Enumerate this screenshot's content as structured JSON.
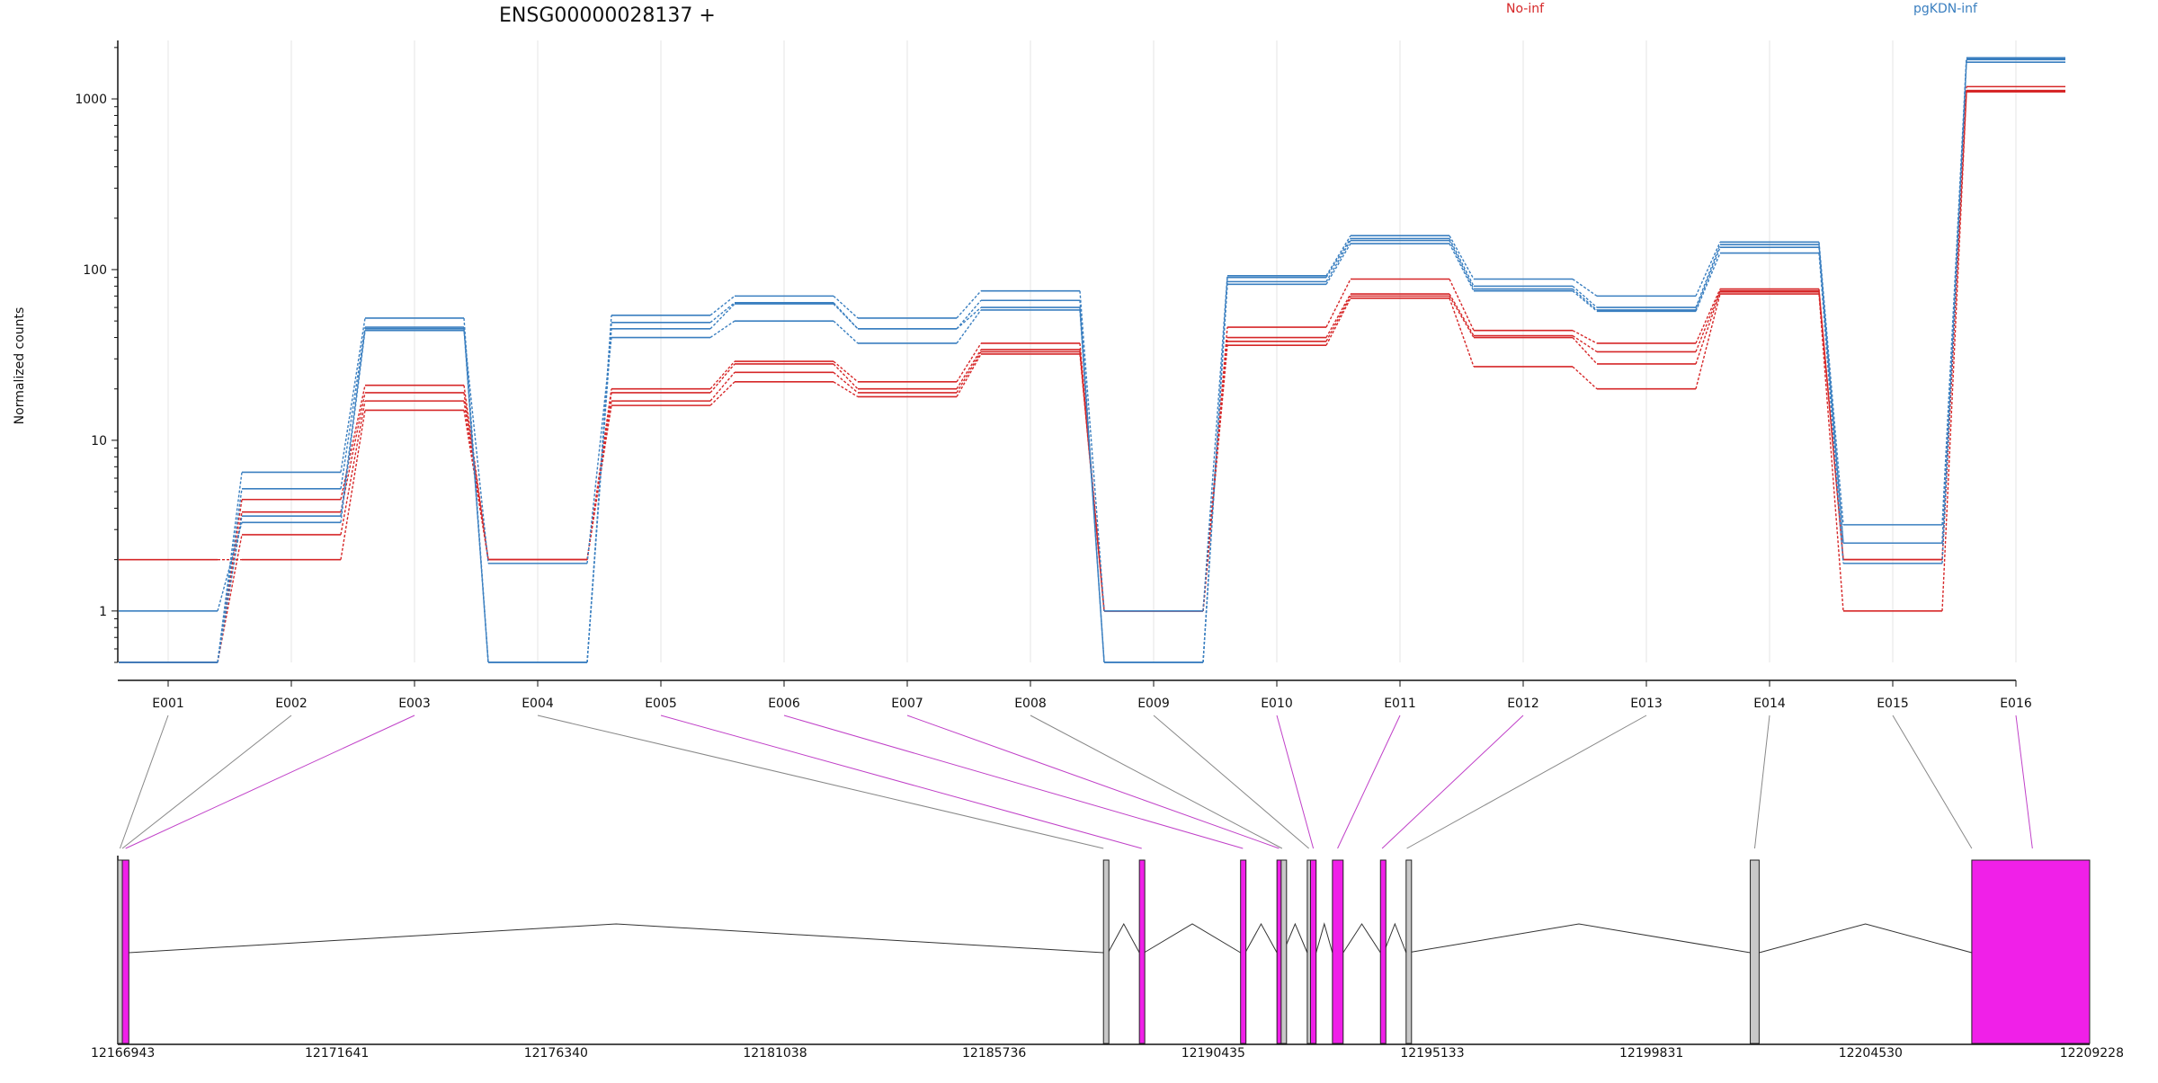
{
  "title": "ENSG00000028137 +",
  "legend": [
    {
      "label": "No-inf",
      "color": "#d62728"
    },
    {
      "label": "pgKDN-inf",
      "color": "#3a7fc0"
    }
  ],
  "colors": {
    "no_inf": "#d62728",
    "pgkdn_inf": "#3a7fc0",
    "highlight_exon": "#f020e8",
    "plain_exon": "#c8c8c8",
    "connector_highlight": "#c040c8",
    "connector_plain": "#888888"
  },
  "chart_data": [
    {
      "type": "line",
      "title": "ENSG00000028137 +",
      "ylabel": "Normalized counts",
      "y_scale": "log",
      "ylim": [
        0.5,
        2200
      ],
      "y_ticks": [
        {
          "value": 1,
          "label": "1"
        },
        {
          "value": 10,
          "label": "10"
        },
        {
          "value": 100,
          "label": "100"
        },
        {
          "value": 1000,
          "label": "1000"
        }
      ],
      "categories": [
        "E001",
        "E002",
        "E003",
        "E004",
        "E005",
        "E006",
        "E007",
        "E008",
        "E009",
        "E010",
        "E011",
        "E012",
        "E013",
        "E014",
        "E015",
        "E016"
      ],
      "grid": "vertical",
      "series": [
        {
          "group": "No-inf",
          "values": [
            2.0,
            2.0,
            15,
            2.0,
            16,
            22,
            18,
            32,
            1.0,
            36,
            68,
            27,
            20,
            72,
            1.0,
            1100
          ]
        },
        {
          "group": "No-inf",
          "values": [
            0.5,
            2.8,
            17,
            2.0,
            17,
            25,
            19,
            33,
            1.0,
            38,
            70,
            40,
            28,
            74,
            2.0,
            1110
          ]
        },
        {
          "group": "No-inf",
          "values": [
            0.5,
            3.8,
            19,
            2.0,
            19,
            28,
            20,
            34,
            1.0,
            40,
            72,
            41,
            33,
            75,
            2.0,
            1120
          ]
        },
        {
          "group": "No-inf",
          "values": [
            0.5,
            4.5,
            21,
            2.0,
            20,
            29,
            22,
            37,
            1.0,
            46,
            88,
            44,
            37,
            77,
            2.0,
            1180
          ]
        },
        {
          "group": "pgKDN-inf",
          "values": [
            1.0,
            3.3,
            44,
            1.9,
            40,
            50,
            37,
            58,
            0.5,
            82,
            142,
            75,
            57,
            125,
            1.9,
            1640
          ]
        },
        {
          "group": "pgKDN-inf",
          "values": [
            0.5,
            3.6,
            45,
            0.5,
            45,
            63,
            45,
            60,
            0.5,
            85,
            148,
            77,
            58,
            135,
            2.5,
            1700
          ]
        },
        {
          "group": "pgKDN-inf",
          "values": [
            0.5,
            5.2,
            46,
            0.5,
            49,
            64,
            45,
            66,
            0.5,
            90,
            152,
            80,
            60,
            140,
            2.5,
            1720
          ]
        },
        {
          "group": "pgKDN-inf",
          "values": [
            0.5,
            6.5,
            52,
            0.5,
            54,
            70,
            52,
            75,
            1.0,
            92,
            158,
            88,
            70,
            145,
            3.2,
            1740
          ]
        }
      ]
    },
    {
      "type": "gene_model",
      "xlim": [
        12166943,
        12209228
      ],
      "x_ticks": [
        {
          "value": 12166943,
          "label": "12166943"
        },
        {
          "value": 12171641,
          "label": "12171641"
        },
        {
          "value": 12176340,
          "label": "12176340"
        },
        {
          "value": 12181038,
          "label": "12181038"
        },
        {
          "value": 12185736,
          "label": "12185736"
        },
        {
          "value": 12190435,
          "label": "12190435"
        },
        {
          "value": 12195133,
          "label": "12195133"
        },
        {
          "value": 12199831,
          "label": "12199831"
        },
        {
          "value": 12204530,
          "label": "12204530"
        },
        {
          "value": 12209228,
          "label": "12209228"
        }
      ],
      "exons": [
        {
          "start": 12166943,
          "end": 12167040,
          "bin": "E001",
          "highlight": false
        },
        {
          "start": 12167040,
          "end": 12167180,
          "bin": "E002",
          "highlight": true
        },
        {
          "start": 12188080,
          "end": 12188180,
          "bin": "E004",
          "highlight": false
        },
        {
          "start": 12188850,
          "end": 12188950,
          "bin": "E005",
          "highlight": true
        },
        {
          "start": 12191020,
          "end": 12191120,
          "bin": "E006",
          "highlight": true
        },
        {
          "start": 12191800,
          "end": 12191890,
          "bin": "E007",
          "highlight": true
        },
        {
          "start": 12191890,
          "end": 12191930,
          "bin": "E008",
          "highlight": false
        },
        {
          "start": 12192450,
          "end": 12192520,
          "bin": "E009",
          "highlight": false
        },
        {
          "start": 12192520,
          "end": 12192640,
          "bin": "E010",
          "highlight": true
        },
        {
          "start": 12192990,
          "end": 12193220,
          "bin": "E011",
          "highlight": true
        },
        {
          "start": 12194020,
          "end": 12194090,
          "bin": "E012",
          "highlight": true
        },
        {
          "start": 12194570,
          "end": 12194600,
          "bin": "E013",
          "highlight": false
        },
        {
          "start": 12201950,
          "end": 12202140,
          "bin": "E014",
          "highlight": false
        },
        {
          "start": 12206700,
          "end": 12209228,
          "bin": "E016",
          "highlight": true
        }
      ],
      "connectors": [
        {
          "bin": "E001",
          "to": 12166990,
          "highlight": false
        },
        {
          "bin": "E002",
          "to": 12167040,
          "highlight": false
        },
        {
          "bin": "E003",
          "to": 12167110,
          "highlight": true
        },
        {
          "bin": "E004",
          "to": 12188080,
          "highlight": false
        },
        {
          "bin": "E005",
          "to": 12188900,
          "highlight": true
        },
        {
          "bin": "E006",
          "to": 12191070,
          "highlight": true
        },
        {
          "bin": "E007",
          "to": 12191845,
          "highlight": true
        },
        {
          "bin": "E008",
          "to": 12191910,
          "highlight": false
        },
        {
          "bin": "E009",
          "to": 12192485,
          "highlight": false
        },
        {
          "bin": "E010",
          "to": 12192580,
          "highlight": true
        },
        {
          "bin": "E011",
          "to": 12193100,
          "highlight": true
        },
        {
          "bin": "E012",
          "to": 12194055,
          "highlight": true
        },
        {
          "bin": "E013",
          "to": 12194585,
          "highlight": false
        },
        {
          "bin": "E014",
          "to": 12202045,
          "highlight": false
        },
        {
          "bin": "E015",
          "to": 12206700,
          "highlight": false
        },
        {
          "bin": "E016",
          "to": 12208000,
          "highlight": true
        }
      ]
    }
  ]
}
